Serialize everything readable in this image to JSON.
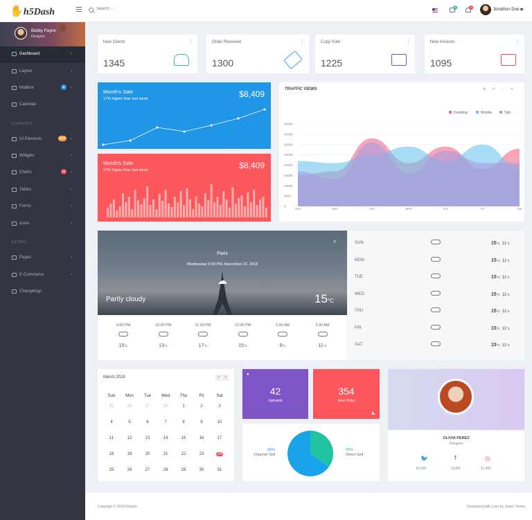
{
  "app": {
    "logo_text": "h5Dash",
    "logo_mark": "✋"
  },
  "topbar": {
    "search_placeholder": "Search ...",
    "user_name": "Jonathon Doe",
    "mail_badge": "5",
    "bell_badge": "4"
  },
  "sidebar": {
    "profile": {
      "name": "Bobby Payne",
      "role": "Designer"
    },
    "sections": {
      "elements": "ELEMENTS",
      "extras": "EXTRAS"
    },
    "items": [
      {
        "label": "Dashboard",
        "active": true
      },
      {
        "label": "Layout"
      },
      {
        "label": "Mailbox",
        "badge": "6",
        "badge_color": "#2196f3"
      },
      {
        "label": "Calendar"
      },
      {
        "label": "UI Elements",
        "badge": "HOT",
        "badge_color": "#fb9b3f"
      },
      {
        "label": "Widgets"
      },
      {
        "label": "Charts",
        "badge": "12",
        "badge_color": "#f44355"
      },
      {
        "label": "Tables"
      },
      {
        "label": "Forms"
      },
      {
        "label": "Icons"
      },
      {
        "label": "Pages"
      },
      {
        "label": "E-Commerce"
      },
      {
        "label": "Changelogs"
      }
    ]
  },
  "stats": [
    {
      "title": "New Clients",
      "value": "1345",
      "color": "#39c17c"
    },
    {
      "title": "Order Received",
      "value": "1300",
      "color": "#2ea8e8"
    },
    {
      "title": "Copy Sold",
      "value": "1225",
      "color": "#7d55c7"
    },
    {
      "title": "New Invoices",
      "value": "1095",
      "color": "#f44355"
    }
  ],
  "sale_blue": {
    "title": "Month's Sale",
    "subtitle": "17% higher than last week",
    "value": "$8,409"
  },
  "sale_red": {
    "title": "Month's Sale",
    "subtitle": "17% higher than last week",
    "value": "$8,409"
  },
  "traffic": {
    "title": "TRAFFIC VIEWS",
    "legend": [
      "Desktop",
      "Mobile",
      "Tab"
    ]
  },
  "chart_data": {
    "type": "area",
    "title": "TRAFFIC VIEWS",
    "categories": [
      "Sun",
      "Mon",
      "Tue",
      "Wed",
      "Thu",
      "Fri",
      "Sat"
    ],
    "ylim": [
      0,
      40000
    ],
    "yticks": [
      "0",
      "5000",
      "10000",
      "15000",
      "20000",
      "25000",
      "30000",
      "35000",
      "40000"
    ],
    "legend_position": "top-right",
    "series": [
      {
        "name": "Desktop",
        "color": "#f06a8a",
        "values": [
          15000,
          17000,
          33000,
          21000,
          29000,
          18000,
          28000
        ]
      },
      {
        "name": "Mobile",
        "color": "#6ec3ef",
        "values": [
          22000,
          21000,
          25000,
          29000,
          22000,
          30000,
          19000
        ]
      },
      {
        "name": "Tab",
        "color": "#a99be0",
        "values": [
          17000,
          13000,
          31000,
          16000,
          27000,
          21000,
          21000
        ]
      }
    ]
  },
  "weather": {
    "city": "Paris",
    "date": "Wednesday 9:50 PM, November 22, 2018",
    "condition": "Partly cloudy",
    "temp": "15",
    "unit": "°C",
    "hours": [
      {
        "time": "9:00 PM",
        "temp": "15"
      },
      {
        "time": "10:00 PM",
        "temp": "13"
      },
      {
        "time": "11:00 PM",
        "temp": "17"
      },
      {
        "time": "12:00 PM",
        "temp": "15"
      },
      {
        "time": "1:00 AM",
        "temp": "9"
      },
      {
        "time": "2:00 AM",
        "temp": "11"
      }
    ],
    "days": [
      {
        "day": "SUN",
        "temp": "15",
        "low": "11"
      },
      {
        "day": "MON",
        "temp": "15",
        "low": "11"
      },
      {
        "day": "TUE",
        "temp": "15",
        "low": "11"
      },
      {
        "day": "WED",
        "temp": "15",
        "low": "11"
      },
      {
        "day": "THU",
        "temp": "15",
        "low": "11"
      },
      {
        "day": "FRI",
        "temp": "15",
        "low": "11"
      },
      {
        "day": "SAT",
        "temp": "15",
        "low": "11"
      }
    ]
  },
  "calendar": {
    "title": "March 2018",
    "weekdays": [
      "Sun",
      "Mon",
      "Tue",
      "Wed",
      "Thu",
      "Fri",
      "Sat"
    ],
    "weeks": [
      [
        "25",
        "26",
        "27",
        "28",
        "1",
        "2",
        "3"
      ],
      [
        "4",
        "5",
        "6",
        "7",
        "8",
        "9",
        "10"
      ],
      [
        "11",
        "12",
        "13",
        "14",
        "15",
        "16",
        "17"
      ],
      [
        "18",
        "19",
        "20",
        "21",
        "22",
        "23",
        "24"
      ],
      [
        "25",
        "26",
        "27",
        "28",
        "29",
        "30",
        "31"
      ]
    ],
    "today": "24"
  },
  "tiles": {
    "uploads": {
      "value": "42",
      "label": "Uploads"
    },
    "subs": {
      "value": "354",
      "label": "New Subs"
    }
  },
  "pie": {
    "left_pct": "65%",
    "left_label": "Channel Sell",
    "right_pct": "35%",
    "right_label": "Direct Sell"
  },
  "profile_card": {
    "name": "OLIVIA PEREZ",
    "role": "Designer",
    "counts": [
      "15,000",
      "8,050",
      "11,450"
    ]
  },
  "footer": {
    "left": "Copyright © 2018 h5dash",
    "right": "Developed with Love by Jewel Theme"
  }
}
